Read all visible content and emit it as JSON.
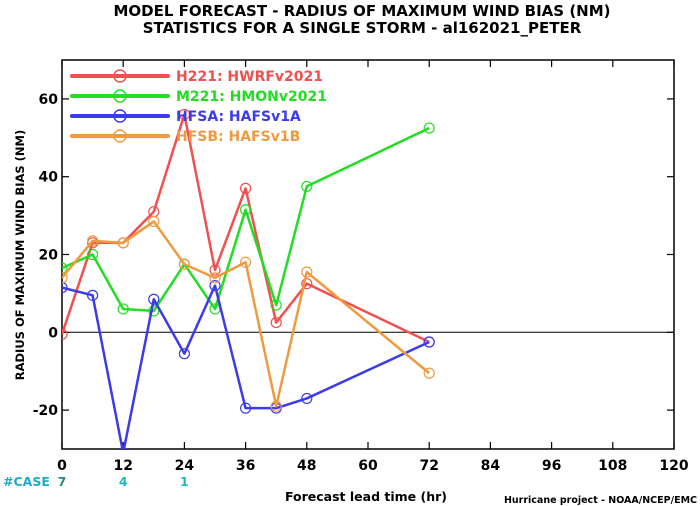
{
  "chart_data": {
    "type": "line",
    "title_line1": "MODEL FORECAST - RADIUS OF MAXIMUM WIND BIAS (NM)",
    "title_line2": "STATISTICS FOR A SINGLE STORM - al162021_PETER",
    "xlabel": "Forecast lead time (hr)",
    "ylabel": "RADIUS OF MAXIMUM WIND BIAS (NM)",
    "credit": "Hurricane project - NOAA/NCEP/EMC",
    "xlim": [
      0,
      120
    ],
    "ylim": [
      -30,
      70
    ],
    "xticks": [
      0,
      12,
      24,
      36,
      48,
      60,
      72,
      84,
      96,
      108,
      120
    ],
    "yticks": [
      -20,
      0,
      20,
      40,
      60
    ],
    "grid": false,
    "legend_position": "top-left",
    "zero_line": true,
    "case_label": "#CASE",
    "case_counts": [
      {
        "x": 0,
        "label": "7"
      },
      {
        "x": 12,
        "label": "4"
      },
      {
        "x": 24,
        "label": "1"
      }
    ],
    "colors": {
      "case_label": "#1fa9c9",
      "case_count_first": "#2a8a7a",
      "case_count_other": "#1fb5c9"
    },
    "series": [
      {
        "name": "H221: HWRFv2021",
        "color": "#f05050",
        "points": [
          [
            0,
            -0.5
          ],
          [
            6,
            23
          ],
          [
            12,
            23
          ],
          [
            18,
            31
          ],
          [
            24,
            56
          ],
          [
            30,
            16
          ],
          [
            36,
            37
          ],
          [
            42,
            2.5
          ],
          [
            48,
            12.5
          ],
          [
            72,
            -2.5
          ]
        ]
      },
      {
        "name": "M221: HMONv2021",
        "color": "#22dd22",
        "points": [
          [
            0,
            16.5
          ],
          [
            6,
            20
          ],
          [
            12,
            6
          ],
          [
            18,
            5.5
          ],
          [
            24,
            17.5
          ],
          [
            30,
            6
          ],
          [
            36,
            31.5
          ],
          [
            42,
            7
          ],
          [
            48,
            37.5
          ],
          [
            72,
            52.5
          ]
        ]
      },
      {
        "name": "HFSA: HAFSv1A",
        "color": "#3b3bea",
        "points": [
          [
            0,
            11.5
          ],
          [
            6,
            9.5
          ],
          [
            12,
            -31
          ],
          [
            18,
            8.5
          ],
          [
            24,
            -5.5
          ],
          [
            30,
            12
          ],
          [
            36,
            -19.5
          ],
          [
            42,
            -19.5
          ],
          [
            48,
            -17
          ],
          [
            72,
            -2.5
          ]
        ]
      },
      {
        "name": "HFSB: HAFSv1B",
        "color": "#f09a40",
        "points": [
          [
            0,
            14
          ],
          [
            6,
            23.5
          ],
          [
            12,
            23
          ],
          [
            18,
            28.5
          ],
          [
            24,
            17.5
          ],
          [
            30,
            14
          ],
          [
            36,
            18
          ],
          [
            42,
            -19
          ],
          [
            48,
            15.5
          ],
          [
            72,
            -10.5
          ]
        ]
      }
    ]
  }
}
